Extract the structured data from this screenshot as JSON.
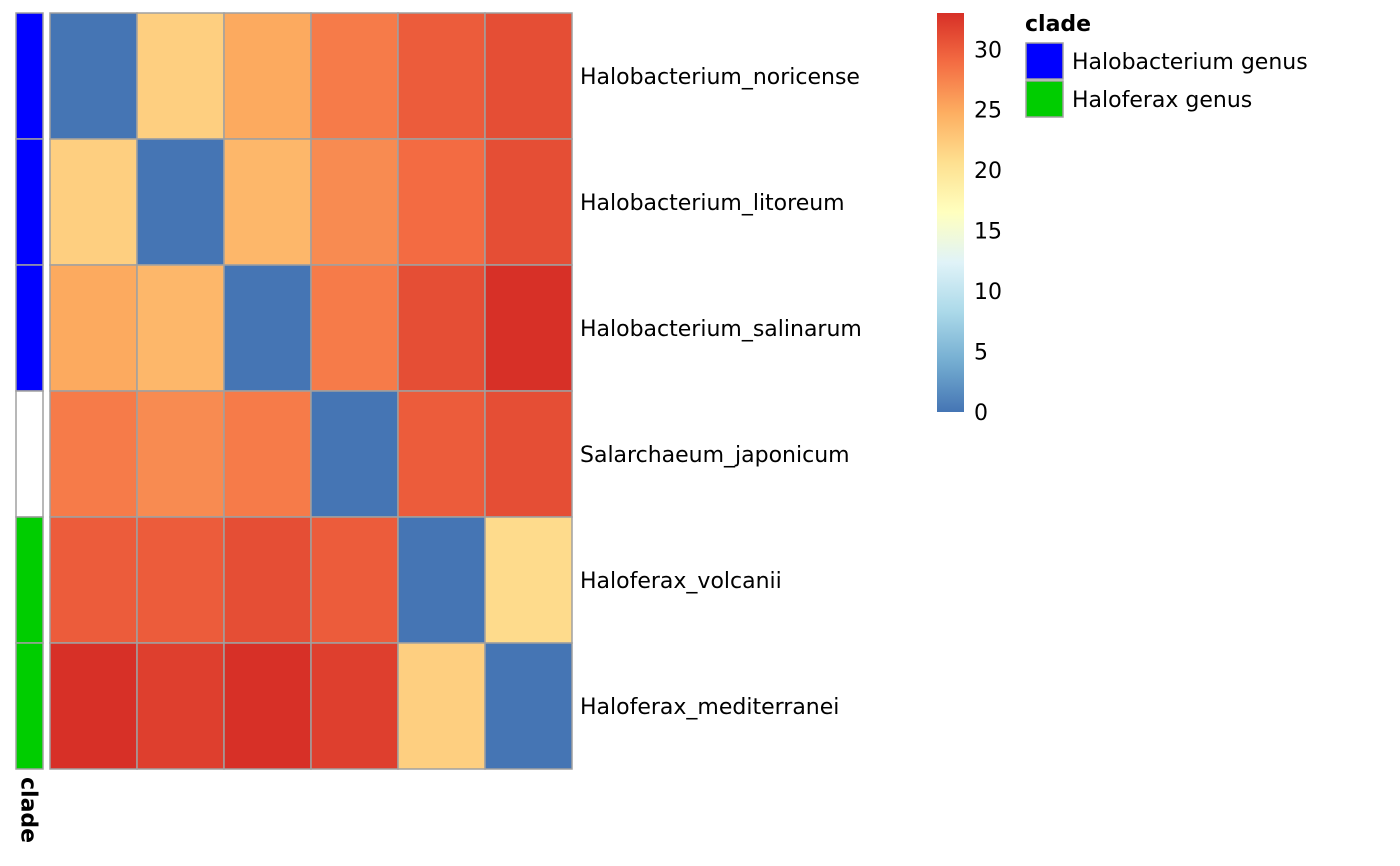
{
  "chart_data": {
    "type": "heatmap",
    "rows": [
      "Halobacterium_noricense",
      "Halobacterium_litoreum",
      "Halobacterium_salinarum",
      "Salarchaeum_japonicum",
      "Haloferax_volcanii",
      "Haloferax_mediterranei"
    ],
    "values": [
      [
        0,
        22,
        25,
        28,
        30,
        31
      ],
      [
        22,
        0,
        24,
        27,
        29,
        31
      ],
      [
        25,
        24,
        0,
        28,
        31,
        33
      ],
      [
        28,
        27,
        28,
        0,
        30,
        31
      ],
      [
        30,
        30,
        31,
        30,
        0,
        21
      ],
      [
        33,
        32,
        33,
        32,
        22,
        0
      ]
    ],
    "color_scale": {
      "min": 0,
      "max": 33,
      "ticks": [
        0,
        5,
        10,
        15,
        20,
        25,
        30
      ],
      "colors": [
        "#4575b4",
        "#74add1",
        "#abd9e9",
        "#e0f3f8",
        "#ffffbf",
        "#fee090",
        "#fdae61",
        "#f46d43",
        "#d73027"
      ]
    },
    "annotation": {
      "label": "clade",
      "row_groups": [
        "Halobacterium genus",
        "Halobacterium genus",
        "Halobacterium genus",
        "",
        "Haloferax genus",
        "Haloferax genus"
      ],
      "legend_title": "clade",
      "legend": [
        {
          "label": "Halobacterium genus",
          "color": "#0000ff"
        },
        {
          "label": "Haloferax genus",
          "color": "#00cd00"
        }
      ],
      "na_color": "#ffffff"
    },
    "cell_border_color": "#a0a0a0"
  }
}
